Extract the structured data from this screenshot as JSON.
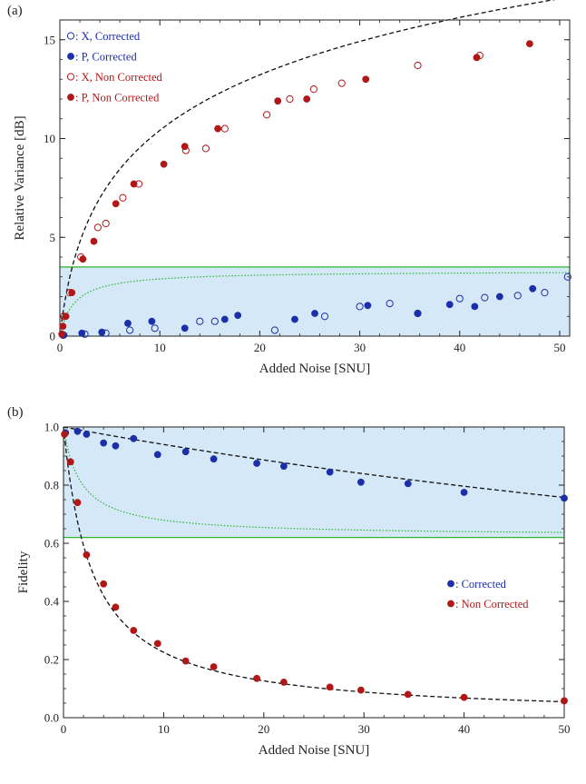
{
  "chart_data": [
    {
      "panel_label": "(a)",
      "type": "scatter",
      "xlabel": "Added Noise [SNU]",
      "ylabel": "Relative Variance [dB]",
      "xlim": [
        0,
        51
      ],
      "ylim": [
        0,
        16
      ],
      "xticks": [
        0,
        10,
        20,
        30,
        40,
        50
      ],
      "yticks": [
        0,
        5,
        10,
        15
      ],
      "grid": false,
      "legend_position": "top-left",
      "colors": {
        "blue": "#1a2fa8",
        "red": "#b01717",
        "green": "#2ab52a",
        "shade": "#d4e8f8"
      },
      "series": [
        {
          "name": ": X, Corrected",
          "marker": "open",
          "color": "#1a2fa8",
          "x": [
            0.3,
            2.5,
            4.6,
            7.0,
            9.5,
            14.0,
            15.5,
            21.5,
            26.5,
            30.0,
            33.0,
            35.8,
            40.0,
            42.5,
            45.8,
            48.5,
            50.8
          ],
          "y": [
            0.05,
            0.1,
            0.15,
            0.3,
            0.4,
            0.75,
            0.75,
            0.3,
            1.0,
            1.5,
            1.65,
            1.15,
            1.9,
            1.95,
            2.05,
            2.2,
            3.0
          ]
        },
        {
          "name": ": P, Corrected",
          "marker": "filled",
          "color": "#1a2fa8",
          "x": [
            0.4,
            2.2,
            4.2,
            6.8,
            9.2,
            12.5,
            16.5,
            17.8,
            23.5,
            25.5,
            30.8,
            35.8,
            39.0,
            41.5,
            44.0,
            47.3
          ],
          "y": [
            0.05,
            0.15,
            0.2,
            0.65,
            0.75,
            0.4,
            0.85,
            1.05,
            0.85,
            1.15,
            1.55,
            1.15,
            1.6,
            1.5,
            2.0,
            2.4
          ]
        },
        {
          "name": ": X, Non Corrected",
          "marker": "open",
          "color": "#b01717",
          "x": [
            0.4,
            1.0,
            2.1,
            3.8,
            4.6,
            6.3,
            7.9,
            12.6,
            14.6,
            16.5,
            20.7,
            23.0,
            25.4,
            28.2,
            35.8,
            42.0
          ],
          "y": [
            1.0,
            2.2,
            4.0,
            5.5,
            5.7,
            7.0,
            7.7,
            9.4,
            9.5,
            10.5,
            11.2,
            12.0,
            12.5,
            12.8,
            13.7,
            14.2
          ]
        },
        {
          "name": ": P, Non Corrected",
          "marker": "filled",
          "color": "#b01717",
          "x": [
            0.2,
            0.3,
            0.6,
            1.2,
            2.3,
            3.4,
            5.6,
            7.4,
            10.4,
            12.5,
            15.8,
            21.8,
            24.7,
            30.6,
            41.7,
            47.0
          ],
          "y": [
            0.1,
            0.5,
            1.0,
            2.2,
            3.9,
            4.8,
            6.7,
            7.7,
            8.7,
            9.6,
            10.5,
            11.9,
            12.0,
            13.0,
            14.1,
            14.8
          ]
        }
      ]
    },
    {
      "panel_label": "(b)",
      "type": "scatter",
      "xlabel": "Added Noise [SNU]",
      "ylabel": "Fidelity",
      "xlim": [
        0,
        50
      ],
      "ylim": [
        0,
        1
      ],
      "xticks": [
        0,
        10,
        20,
        30,
        40,
        50
      ],
      "yticks": [
        0.0,
        0.2,
        0.4,
        0.6,
        0.8,
        1.0
      ],
      "grid": false,
      "legend_position": "right",
      "colors": {
        "blue": "#1a2fa8",
        "red": "#b01717",
        "green": "#2ab52a",
        "shade": "#d4e8f8"
      },
      "series": [
        {
          "name": ": Corrected",
          "marker": "filled",
          "color": "#1a2fa8",
          "x": [
            0.2,
            1.4,
            2.3,
            4.0,
            5.2,
            7.0,
            9.4,
            12.2,
            15.0,
            19.3,
            22.0,
            26.6,
            29.7,
            34.4,
            40.0,
            50.0
          ],
          "y": [
            0.98,
            0.985,
            0.975,
            0.945,
            0.935,
            0.96,
            0.905,
            0.915,
            0.89,
            0.875,
            0.865,
            0.845,
            0.81,
            0.805,
            0.775,
            0.755
          ]
        },
        {
          "name": ": Non Corrected",
          "marker": "filled",
          "color": "#b01717",
          "x": [
            0.1,
            0.7,
            1.4,
            2.3,
            4.0,
            5.2,
            7.0,
            9.4,
            12.2,
            15.0,
            19.3,
            22.0,
            26.6,
            29.7,
            34.4,
            40.0,
            50.0
          ],
          "y": [
            0.975,
            0.88,
            0.74,
            0.56,
            0.46,
            0.38,
            0.3,
            0.255,
            0.195,
            0.175,
            0.135,
            0.122,
            0.105,
            0.095,
            0.08,
            0.07,
            0.058
          ]
        }
      ]
    }
  ]
}
